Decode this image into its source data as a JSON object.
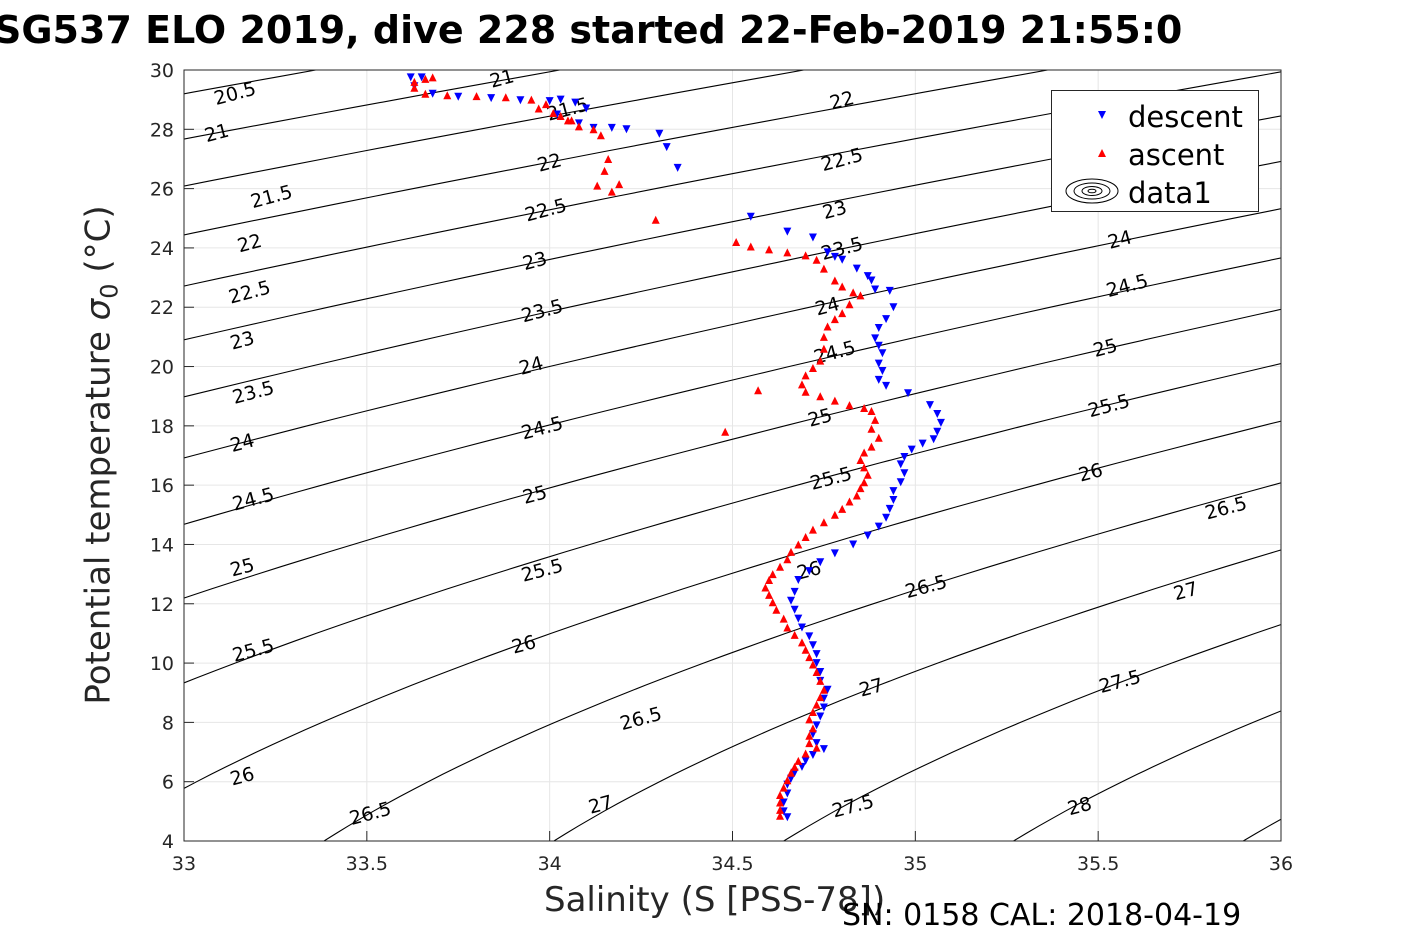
{
  "title": "SG537 ELO 2019, dive 228 started 22-Feb-2019 21:55:0",
  "footer": "SN: 0158  CAL: 2018-04-19",
  "colors": {
    "descent": "#0000ff",
    "ascent": "#ff0000",
    "contour": "#000000",
    "grid": "#e6e6e6"
  },
  "chart_data": {
    "type": "scatter",
    "xlabel": "Salinity (S [PSS-78])",
    "ylabel_main": "Potential temperature ",
    "ylabel_sigma": "σ",
    "ylabel_sub": "0",
    "ylabel_unit": " (°C)",
    "xlim": [
      33,
      36
    ],
    "ylim": [
      4,
      30
    ],
    "xticks": [
      "33",
      "33.5",
      "34",
      "34.5",
      "35",
      "35.5",
      "36"
    ],
    "yticks": [
      "4",
      "6",
      "8",
      "10",
      "12",
      "14",
      "16",
      "18",
      "20",
      "22",
      "24",
      "26",
      "28",
      "30"
    ],
    "grid": true,
    "legend_position": "top-right",
    "legend": [
      "descent",
      "ascent",
      "data1"
    ],
    "contour_levels": [
      20.5,
      21,
      21.5,
      22,
      22.5,
      23,
      23.5,
      24,
      24.5,
      25,
      25.5,
      26,
      26.5,
      27,
      27.5,
      28,
      28.5
    ],
    "contour_labels": [
      {
        "text": "20.5",
        "s": 33.14,
        "t": 29.18
      },
      {
        "text": "21",
        "s": 33.09,
        "t": 27.85
      },
      {
        "text": "21.5",
        "s": 33.24,
        "t": 25.7
      },
      {
        "text": "22",
        "s": 33.18,
        "t": 24.13
      },
      {
        "text": "22.5",
        "s": 33.18,
        "t": 22.48
      },
      {
        "text": "23",
        "s": 33.16,
        "t": 20.85
      },
      {
        "text": "23.5",
        "s": 33.19,
        "t": 19.1
      },
      {
        "text": "24",
        "s": 33.16,
        "t": 17.4
      },
      {
        "text": "24.5",
        "s": 33.19,
        "t": 15.5
      },
      {
        "text": "25",
        "s": 33.16,
        "t": 13.2
      },
      {
        "text": "25.5",
        "s": 33.19,
        "t": 10.4
      },
      {
        "text": "26",
        "s": 33.16,
        "t": 6.15
      },
      {
        "text": "26.5",
        "s": 33.51,
        "t": 4.9
      },
      {
        "text": "21",
        "s": 33.87,
        "t": 29.68
      },
      {
        "text": "21.5",
        "s": 34.05,
        "t": 28.65
      },
      {
        "text": "22",
        "s": 34.0,
        "t": 26.85
      },
      {
        "text": "22.5",
        "s": 33.99,
        "t": 25.25
      },
      {
        "text": "23",
        "s": 33.96,
        "t": 23.53
      },
      {
        "text": "23.5",
        "s": 33.98,
        "t": 21.85
      },
      {
        "text": "24",
        "s": 33.95,
        "t": 20.0
      },
      {
        "text": "24.5",
        "s": 33.98,
        "t": 17.9
      },
      {
        "text": "25",
        "s": 33.96,
        "t": 15.65
      },
      {
        "text": "25.5",
        "s": 33.98,
        "t": 13.1
      },
      {
        "text": "26",
        "s": 33.93,
        "t": 10.6
      },
      {
        "text": "26.5",
        "s": 34.25,
        "t": 8.1
      },
      {
        "text": "27",
        "s": 34.14,
        "t": 5.2
      },
      {
        "text": "22",
        "s": 34.8,
        "t": 28.95
      },
      {
        "text": "22.5",
        "s": 34.8,
        "t": 26.95
      },
      {
        "text": "23",
        "s": 34.78,
        "t": 25.25
      },
      {
        "text": "23.5",
        "s": 34.8,
        "t": 23.95
      },
      {
        "text": "24",
        "s": 34.76,
        "t": 22.0
      },
      {
        "text": "24.5",
        "s": 34.78,
        "t": 20.45
      },
      {
        "text": "25",
        "s": 34.74,
        "t": 18.25
      },
      {
        "text": "25.5",
        "s": 34.77,
        "t": 16.2
      },
      {
        "text": "26",
        "s": 34.71,
        "t": 13.1
      },
      {
        "text": "26.5",
        "s": 35.03,
        "t": 12.55
      },
      {
        "text": "27",
        "s": 34.88,
        "t": 9.15
      },
      {
        "text": "27.5",
        "s": 34.83,
        "t": 5.15
      },
      {
        "text": "24",
        "s": 35.56,
        "t": 24.25
      },
      {
        "text": "24.5",
        "s": 35.58,
        "t": 22.7
      },
      {
        "text": "25",
        "s": 35.52,
        "t": 20.6
      },
      {
        "text": "25.5",
        "s": 35.53,
        "t": 18.65
      },
      {
        "text": "26",
        "s": 35.48,
        "t": 16.4
      },
      {
        "text": "26.5",
        "s": 35.85,
        "t": 15.2
      },
      {
        "text": "27",
        "s": 35.74,
        "t": 12.4
      },
      {
        "text": "27.5",
        "s": 35.56,
        "t": 9.35
      },
      {
        "text": "28",
        "s": 35.45,
        "t": 5.15
      }
    ],
    "series": [
      {
        "name": "descent",
        "marker": "triangle-down",
        "points": [
          [
            33.62,
            29.75
          ],
          [
            33.65,
            29.75
          ],
          [
            33.63,
            29.45
          ],
          [
            33.68,
            29.2
          ],
          [
            33.75,
            29.1
          ],
          [
            33.84,
            29.05
          ],
          [
            33.92,
            28.98
          ],
          [
            34.0,
            28.95
          ],
          [
            34.03,
            29.0
          ],
          [
            34.07,
            28.9
          ],
          [
            34.1,
            28.7
          ],
          [
            34.02,
            28.5
          ],
          [
            34.08,
            28.2
          ],
          [
            34.12,
            28.05
          ],
          [
            34.17,
            28.05
          ],
          [
            34.21,
            28.0
          ],
          [
            34.3,
            27.85
          ],
          [
            34.32,
            27.4
          ],
          [
            34.35,
            26.7
          ],
          [
            34.55,
            25.05
          ],
          [
            34.65,
            24.55
          ],
          [
            34.72,
            24.35
          ],
          [
            34.76,
            23.85
          ],
          [
            34.78,
            23.7
          ],
          [
            34.8,
            23.6
          ],
          [
            34.84,
            23.3
          ],
          [
            34.87,
            23.05
          ],
          [
            34.88,
            22.9
          ],
          [
            34.89,
            22.6
          ],
          [
            34.93,
            22.55
          ],
          [
            34.94,
            22.0
          ],
          [
            34.92,
            21.6
          ],
          [
            34.9,
            21.3
          ],
          [
            34.89,
            20.95
          ],
          [
            34.9,
            20.7
          ],
          [
            34.91,
            20.45
          ],
          [
            34.9,
            20.1
          ],
          [
            34.91,
            19.85
          ],
          [
            34.9,
            19.55
          ],
          [
            34.92,
            19.35
          ],
          [
            34.98,
            19.1
          ],
          [
            35.04,
            18.7
          ],
          [
            35.06,
            18.4
          ],
          [
            35.07,
            18.1
          ],
          [
            35.06,
            17.8
          ],
          [
            35.05,
            17.55
          ],
          [
            35.02,
            17.4
          ],
          [
            34.99,
            17.2
          ],
          [
            34.97,
            16.95
          ],
          [
            34.96,
            16.7
          ],
          [
            34.97,
            16.4
          ],
          [
            34.96,
            16.1
          ],
          [
            34.94,
            15.8
          ],
          [
            34.94,
            15.5
          ],
          [
            34.93,
            15.2
          ],
          [
            34.92,
            14.9
          ],
          [
            34.9,
            14.6
          ],
          [
            34.87,
            14.3
          ],
          [
            34.83,
            14.0
          ],
          [
            34.78,
            13.7
          ],
          [
            34.74,
            13.4
          ],
          [
            34.71,
            13.1
          ],
          [
            34.68,
            12.8
          ],
          [
            34.67,
            12.4
          ],
          [
            34.66,
            12.1
          ],
          [
            34.67,
            11.8
          ],
          [
            34.68,
            11.5
          ],
          [
            34.69,
            11.2
          ],
          [
            34.71,
            10.9
          ],
          [
            34.72,
            10.6
          ],
          [
            34.73,
            10.3
          ],
          [
            34.73,
            10.0
          ],
          [
            34.74,
            9.7
          ],
          [
            34.74,
            9.4
          ],
          [
            34.76,
            9.1
          ],
          [
            34.75,
            8.8
          ],
          [
            34.75,
            8.5
          ],
          [
            34.74,
            8.2
          ],
          [
            34.73,
            7.9
          ],
          [
            34.72,
            7.6
          ],
          [
            34.73,
            7.3
          ],
          [
            34.75,
            7.1
          ],
          [
            34.72,
            6.9
          ],
          [
            34.7,
            6.7
          ],
          [
            34.69,
            6.5
          ],
          [
            34.67,
            6.3
          ],
          [
            34.66,
            6.1
          ],
          [
            34.65,
            5.9
          ],
          [
            34.65,
            5.6
          ],
          [
            34.64,
            5.3
          ],
          [
            34.64,
            5.0
          ],
          [
            34.65,
            4.8
          ]
        ]
      },
      {
        "name": "ascent",
        "marker": "triangle-up",
        "points": [
          [
            33.63,
            29.6
          ],
          [
            33.66,
            29.7
          ],
          [
            33.68,
            29.75
          ],
          [
            33.63,
            29.4
          ],
          [
            33.66,
            29.2
          ],
          [
            33.72,
            29.15
          ],
          [
            33.8,
            29.12
          ],
          [
            33.88,
            29.08
          ],
          [
            33.95,
            29.0
          ],
          [
            33.99,
            28.85
          ],
          [
            33.97,
            28.7
          ],
          [
            34.01,
            28.55
          ],
          [
            34.05,
            28.3
          ],
          [
            34.08,
            28.1
          ],
          [
            34.12,
            28.0
          ],
          [
            34.06,
            28.3
          ],
          [
            34.03,
            28.45
          ],
          [
            34.14,
            27.8
          ],
          [
            34.16,
            27.0
          ],
          [
            34.15,
            26.6
          ],
          [
            34.13,
            26.1
          ],
          [
            34.17,
            25.9
          ],
          [
            34.19,
            26.15
          ],
          [
            34.29,
            24.95
          ],
          [
            34.51,
            24.2
          ],
          [
            34.55,
            24.05
          ],
          [
            34.6,
            23.95
          ],
          [
            34.65,
            23.85
          ],
          [
            34.7,
            23.75
          ],
          [
            34.73,
            23.6
          ],
          [
            34.75,
            23.3
          ],
          [
            34.78,
            22.9
          ],
          [
            34.8,
            22.7
          ],
          [
            34.83,
            22.5
          ],
          [
            34.85,
            22.4
          ],
          [
            34.82,
            22.1
          ],
          [
            34.8,
            21.8
          ],
          [
            34.78,
            21.6
          ],
          [
            34.76,
            21.35
          ],
          [
            34.75,
            21.0
          ],
          [
            34.75,
            20.6
          ],
          [
            34.74,
            20.2
          ],
          [
            34.72,
            19.95
          ],
          [
            34.7,
            19.7
          ],
          [
            34.69,
            19.4
          ],
          [
            34.7,
            19.15
          ],
          [
            34.74,
            19.0
          ],
          [
            34.78,
            18.85
          ],
          [
            34.82,
            18.7
          ],
          [
            34.86,
            18.6
          ],
          [
            34.88,
            18.5
          ],
          [
            34.89,
            18.2
          ],
          [
            34.88,
            17.9
          ],
          [
            34.9,
            17.6
          ],
          [
            34.88,
            17.3
          ],
          [
            34.86,
            17.1
          ],
          [
            34.85,
            16.85
          ],
          [
            34.86,
            16.6
          ],
          [
            34.87,
            16.35
          ],
          [
            34.86,
            16.1
          ],
          [
            34.85,
            15.9
          ],
          [
            34.84,
            15.65
          ],
          [
            34.82,
            15.45
          ],
          [
            34.8,
            15.2
          ],
          [
            34.78,
            15.0
          ],
          [
            34.75,
            14.75
          ],
          [
            34.72,
            14.5
          ],
          [
            34.7,
            14.25
          ],
          [
            34.68,
            14.0
          ],
          [
            34.66,
            13.75
          ],
          [
            34.65,
            13.5
          ],
          [
            34.63,
            13.25
          ],
          [
            34.61,
            13.0
          ],
          [
            34.6,
            12.8
          ],
          [
            34.59,
            12.55
          ],
          [
            34.6,
            12.3
          ],
          [
            34.61,
            12.05
          ],
          [
            34.62,
            11.8
          ],
          [
            34.64,
            11.5
          ],
          [
            34.65,
            11.2
          ],
          [
            34.67,
            10.95
          ],
          [
            34.69,
            10.7
          ],
          [
            34.7,
            10.45
          ],
          [
            34.71,
            10.2
          ],
          [
            34.72,
            9.95
          ],
          [
            34.73,
            9.7
          ],
          [
            34.74,
            9.4
          ],
          [
            34.75,
            9.1
          ],
          [
            34.74,
            8.85
          ],
          [
            34.73,
            8.6
          ],
          [
            34.72,
            8.35
          ],
          [
            34.71,
            8.1
          ],
          [
            34.72,
            7.8
          ],
          [
            34.71,
            7.55
          ],
          [
            34.71,
            7.3
          ],
          [
            34.73,
            7.15
          ],
          [
            34.7,
            6.95
          ],
          [
            34.68,
            6.7
          ],
          [
            34.67,
            6.5
          ],
          [
            34.66,
            6.3
          ],
          [
            34.65,
            6.05
          ],
          [
            34.64,
            5.8
          ],
          [
            34.63,
            5.55
          ],
          [
            34.63,
            5.3
          ],
          [
            34.63,
            5.05
          ],
          [
            34.63,
            4.85
          ],
          [
            34.48,
            17.8
          ],
          [
            34.57,
            19.2
          ]
        ]
      }
    ]
  }
}
